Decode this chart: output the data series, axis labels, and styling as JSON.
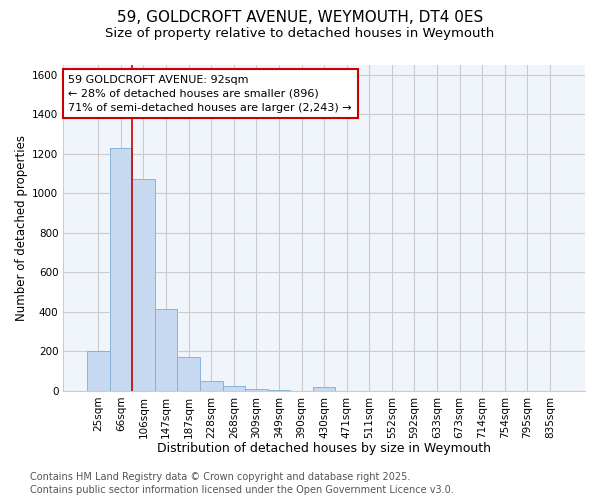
{
  "title1": "59, GOLDCROFT AVENUE, WEYMOUTH, DT4 0ES",
  "title2": "Size of property relative to detached houses in Weymouth",
  "xlabel": "Distribution of detached houses by size in Weymouth",
  "ylabel": "Number of detached properties",
  "categories": [
    "25sqm",
    "66sqm",
    "106sqm",
    "147sqm",
    "187sqm",
    "228sqm",
    "268sqm",
    "309sqm",
    "349sqm",
    "390sqm",
    "430sqm",
    "471sqm",
    "511sqm",
    "552sqm",
    "592sqm",
    "633sqm",
    "673sqm",
    "714sqm",
    "754sqm",
    "795sqm",
    "835sqm"
  ],
  "values": [
    200,
    1230,
    1075,
    415,
    170,
    50,
    25,
    10,
    5,
    0,
    17,
    0,
    0,
    0,
    0,
    0,
    0,
    0,
    0,
    0,
    0
  ],
  "bar_color": "#c6d9f0",
  "bar_edge_color": "#7bafd4",
  "red_line_x": 1.5,
  "annotation_text": "59 GOLDCROFT AVENUE: 92sqm\n← 28% of detached houses are smaller (896)\n71% of semi-detached houses are larger (2,243) →",
  "annotation_box_color": "#ffffff",
  "annotation_box_edge": "#cc0000",
  "ylim": [
    0,
    1650
  ],
  "yticks": [
    0,
    200,
    400,
    600,
    800,
    1000,
    1200,
    1400,
    1600
  ],
  "grid_color": "#cccccc",
  "bg_color": "#ffffff",
  "plot_bg_color": "#f0f4fb",
  "footer1": "Contains HM Land Registry data © Crown copyright and database right 2025.",
  "footer2": "Contains public sector information licensed under the Open Government Licence v3.0.",
  "title1_fontsize": 11,
  "title2_fontsize": 9.5,
  "xlabel_fontsize": 9,
  "ylabel_fontsize": 8.5,
  "tick_fontsize": 7.5,
  "annotation_fontsize": 8,
  "footer_fontsize": 7
}
